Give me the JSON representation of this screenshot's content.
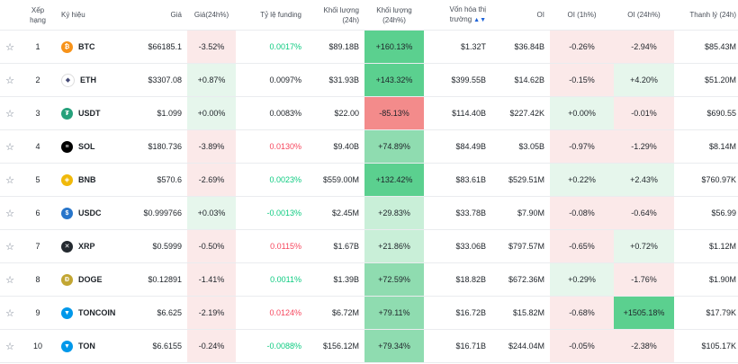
{
  "headers": {
    "rank": "Xếp hạng",
    "symbol": "Ký hiệu",
    "price": "Giá",
    "change": "Giá(24h%)",
    "funding": "Tỷ lệ funding",
    "volume": "Khối lượng (24h)",
    "volume_pct": "Khối lượng (24h%)",
    "mcap": "Vốn hóa thị trường",
    "oi": "OI",
    "oi1h": "OI (1h%)",
    "oi24h": "OI (24h%)",
    "liq": "Thanh lý (24h)"
  },
  "rows": [
    {
      "rank": "1",
      "symbol": "BTC",
      "price": "$66185.1",
      "change": "-3.52%",
      "funding": "0.0017%",
      "volume": "$89.18B",
      "volume_pct": "+160.13%",
      "mcap": "$1.32T",
      "oi": "$36.84B",
      "oi1h": "-0.26%",
      "oi24h": "-2.94%",
      "liq": "$85.43M"
    },
    {
      "rank": "2",
      "symbol": "ETH",
      "price": "$3307.08",
      "change": "+0.87%",
      "funding": "0.0097%",
      "volume": "$31.93B",
      "volume_pct": "+143.32%",
      "mcap": "$399.55B",
      "oi": "$14.62B",
      "oi1h": "-0.15%",
      "oi24h": "+4.20%",
      "liq": "$51.20M"
    },
    {
      "rank": "3",
      "symbol": "USDT",
      "price": "$1.099",
      "change": "+0.00%",
      "funding": "0.0083%",
      "volume": "$22.00",
      "volume_pct": "-85.13%",
      "mcap": "$114.40B",
      "oi": "$227.42K",
      "oi1h": "+0.00%",
      "oi24h": "-0.01%",
      "liq": "$690.55"
    },
    {
      "rank": "4",
      "symbol": "SOL",
      "price": "$180.736",
      "change": "-3.89%",
      "funding": "0.0130%",
      "volume": "$9.40B",
      "volume_pct": "+74.89%",
      "mcap": "$84.49B",
      "oi": "$3.05B",
      "oi1h": "-0.97%",
      "oi24h": "-1.29%",
      "liq": "$8.14M"
    },
    {
      "rank": "5",
      "symbol": "BNB",
      "price": "$570.6",
      "change": "-2.69%",
      "funding": "0.0023%",
      "volume": "$559.00M",
      "volume_pct": "+132.42%",
      "mcap": "$83.61B",
      "oi": "$529.51M",
      "oi1h": "+0.22%",
      "oi24h": "+2.43%",
      "liq": "$760.97K"
    },
    {
      "rank": "6",
      "symbol": "USDC",
      "price": "$0.999766",
      "change": "+0.03%",
      "funding": "-0.0013%",
      "volume": "$2.45M",
      "volume_pct": "+29.83%",
      "mcap": "$33.78B",
      "oi": "$7.90M",
      "oi1h": "-0.08%",
      "oi24h": "-0.64%",
      "liq": "$56.99"
    },
    {
      "rank": "7",
      "symbol": "XRP",
      "price": "$0.5999",
      "change": "-0.50%",
      "funding": "0.0115%",
      "volume": "$1.67B",
      "volume_pct": "+21.86%",
      "mcap": "$33.06B",
      "oi": "$797.57M",
      "oi1h": "-0.65%",
      "oi24h": "+0.72%",
      "liq": "$1.12M"
    },
    {
      "rank": "8",
      "symbol": "DOGE",
      "price": "$0.12891",
      "change": "-1.41%",
      "funding": "0.0011%",
      "volume": "$1.39B",
      "volume_pct": "+72.59%",
      "mcap": "$18.82B",
      "oi": "$672.36M",
      "oi1h": "+0.29%",
      "oi24h": "-1.76%",
      "liq": "$1.90M"
    },
    {
      "rank": "9",
      "symbol": "TONCOIN",
      "price": "$6.625",
      "change": "-2.19%",
      "funding": "0.0124%",
      "volume": "$6.72M",
      "volume_pct": "+79.11%",
      "mcap": "$16.72B",
      "oi": "$15.82M",
      "oi1h": "-0.68%",
      "oi24h": "+1505.18%",
      "liq": "$17.79K"
    },
    {
      "rank": "10",
      "symbol": "TON",
      "price": "$6.6155",
      "change": "-0.24%",
      "funding": "-0.0088%",
      "volume": "$156.12M",
      "volume_pct": "+79.34%",
      "mcap": "$16.71B",
      "oi": "$244.04M",
      "oi1h": "-0.05%",
      "oi24h": "-2.38%",
      "liq": "$105.17K"
    }
  ],
  "coin_icons": {
    "BTC": {
      "color": "#f7931a",
      "glyph": "₿",
      "name": "btc-icon"
    },
    "ETH": {
      "color": "#ffffff",
      "glyph": "◆",
      "name": "eth-icon"
    },
    "USDT": {
      "color": "#26a17b",
      "glyph": "₮",
      "name": "usdt-icon"
    },
    "SOL": {
      "color": "#000000",
      "glyph": "≡",
      "name": "sol-icon"
    },
    "BNB": {
      "color": "#f0b90b",
      "glyph": "◈",
      "name": "bnb-icon"
    },
    "USDC": {
      "color": "#2775ca",
      "glyph": "$",
      "name": "usdc-icon"
    },
    "XRP": {
      "color": "#23292f",
      "glyph": "✕",
      "name": "xrp-icon"
    },
    "DOGE": {
      "color": "#c2a633",
      "glyph": "Ð",
      "name": "doge-icon"
    },
    "TONCOIN": {
      "color": "#0098ea",
      "glyph": "▼",
      "name": "toncoin-icon"
    },
    "TON": {
      "color": "#0098ea",
      "glyph": "▼",
      "name": "ton-icon"
    }
  },
  "colors": {
    "positive": "#0ecb81",
    "negative": "#f6465d"
  }
}
